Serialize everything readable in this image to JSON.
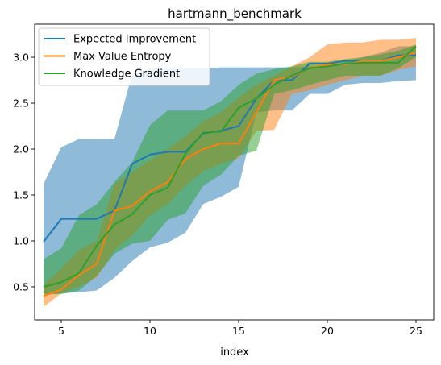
{
  "chart_data": {
    "type": "line",
    "title": "hartmann_benchmark",
    "xlabel": "index",
    "ylabel": "",
    "xlim": [
      3.5,
      26.0
    ],
    "ylim": [
      0.14,
      3.36
    ],
    "xticks": [
      5,
      10,
      15,
      20,
      25
    ],
    "yticks": [
      0.5,
      1.0,
      1.5,
      2.0,
      2.5,
      3.0
    ],
    "ytick_labels": [
      "0.5",
      "1.0",
      "1.5",
      "2.0",
      "2.5",
      "3.0"
    ],
    "legend_position": "upper-left",
    "grid": false,
    "x": [
      4,
      5,
      6,
      7,
      8,
      9,
      10,
      11,
      12,
      13,
      14,
      15,
      16,
      17,
      18,
      19,
      20,
      21,
      22,
      23,
      24,
      25
    ],
    "series": [
      {
        "name": "Expected Improvement",
        "color": "#1f77b4",
        "band_opacity": 0.5,
        "values": [
          0.99,
          1.24,
          1.24,
          1.24,
          1.33,
          1.84,
          1.94,
          1.97,
          1.97,
          2.17,
          2.2,
          2.25,
          2.55,
          2.75,
          2.75,
          2.93,
          2.93,
          2.96,
          2.96,
          2.96,
          3.02,
          3.02
        ],
        "lower": [
          0.42,
          0.43,
          0.44,
          0.46,
          0.6,
          0.78,
          0.93,
          0.98,
          1.09,
          1.4,
          1.48,
          1.59,
          2.4,
          2.42,
          2.42,
          2.6,
          2.6,
          2.7,
          2.72,
          2.72,
          2.74,
          2.75
        ],
        "upper": [
          1.62,
          2.02,
          2.11,
          2.11,
          2.11,
          2.82,
          2.88,
          2.88,
          2.88,
          2.88,
          2.89,
          2.89,
          2.89,
          2.89,
          2.89,
          2.9,
          2.9,
          2.95,
          3.0,
          3.05,
          3.12,
          3.12
        ]
      },
      {
        "name": "Max Value Entropy",
        "color": "#ff7f0e",
        "band_opacity": 0.5,
        "values": [
          0.4,
          0.47,
          0.63,
          0.75,
          1.33,
          1.38,
          1.54,
          1.64,
          1.89,
          2.0,
          2.06,
          2.06,
          2.4,
          2.75,
          2.79,
          2.88,
          2.92,
          2.92,
          2.96,
          2.96,
          3.0,
          3.05
        ],
        "lower": [
          0.28,
          0.43,
          0.5,
          0.6,
          0.9,
          1.06,
          1.28,
          1.4,
          1.6,
          1.76,
          1.84,
          1.9,
          2.2,
          2.21,
          2.6,
          2.64,
          2.7,
          2.75,
          2.8,
          2.8,
          2.86,
          2.9
        ],
        "upper": [
          0.52,
          0.7,
          0.9,
          1.0,
          1.62,
          1.75,
          1.88,
          2.0,
          2.14,
          2.3,
          2.4,
          2.56,
          2.7,
          2.8,
          2.9,
          3.0,
          3.14,
          3.16,
          3.16,
          3.19,
          3.19,
          3.21
        ]
      },
      {
        "name": "Knowledge Gradient",
        "color": "#2ca02c",
        "band_opacity": 0.5,
        "values": [
          0.5,
          0.55,
          0.65,
          0.95,
          1.18,
          1.29,
          1.5,
          1.58,
          1.95,
          2.18,
          2.19,
          2.45,
          2.55,
          2.7,
          2.8,
          2.88,
          2.9,
          2.93,
          2.94,
          2.94,
          2.94,
          3.12
        ],
        "lower": [
          0.42,
          0.42,
          0.46,
          0.62,
          0.86,
          0.97,
          1.0,
          1.23,
          1.3,
          1.6,
          1.72,
          1.93,
          1.98,
          2.6,
          2.64,
          2.7,
          2.75,
          2.8,
          2.8,
          2.8,
          2.88,
          3.0
        ],
        "upper": [
          0.8,
          0.92,
          1.28,
          1.4,
          1.64,
          1.86,
          2.26,
          2.42,
          2.42,
          2.42,
          2.52,
          2.7,
          2.82,
          2.87,
          2.9,
          2.95,
          2.95,
          2.98,
          3.0,
          3.03,
          3.07,
          3.14
        ]
      }
    ]
  }
}
